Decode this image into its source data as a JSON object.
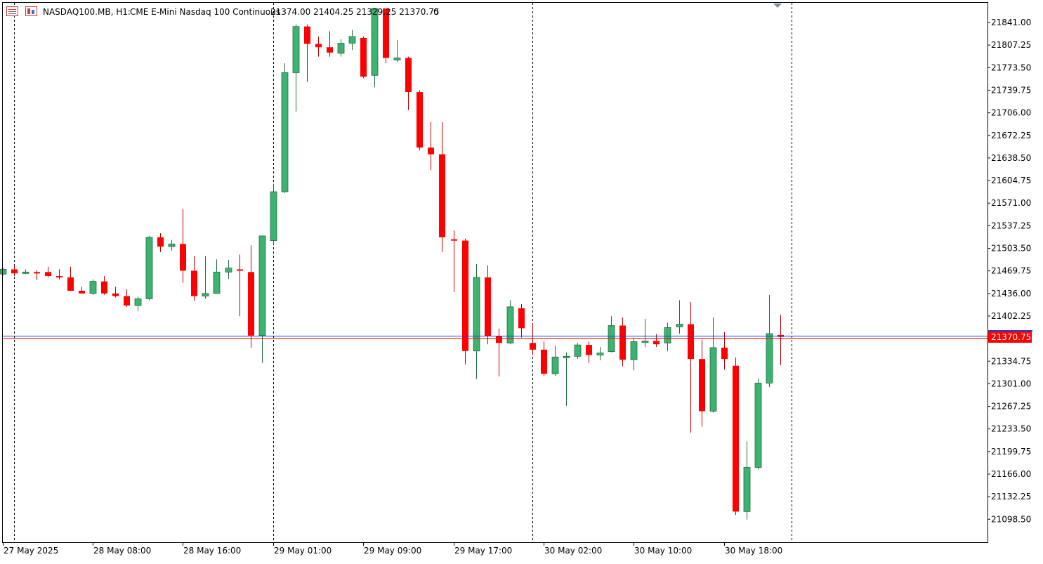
{
  "header": {
    "symbol": "NASDAQ100.MB, H1:",
    "description": "CME E-Mini Nasdaq 100 Continuous",
    "ohlc": "21374.00 21404.25 21329.25 21370.75",
    "volume": "0",
    "icons": [
      "chart-list-icon",
      "chart-window-icon"
    ]
  },
  "colors": {
    "bull": "#3CB371",
    "bear": "#FF0000",
    "bid_line": "#FF0000",
    "ask_line": "#1E3FCC",
    "price_label_bg": "#FF0000",
    "grid": "#000000",
    "background": "#FFFFFF"
  },
  "chart_data": {
    "type": "candlestick",
    "symbol": "NASDAQ100.MB",
    "timeframe": "H1",
    "current_price": "21370.75",
    "y_ticks": [
      "21841.00",
      "21807.25",
      "21773.50",
      "21739.75",
      "21706.00",
      "21672.25",
      "21638.50",
      "21604.75",
      "21571.00",
      "21537.25",
      "21503.50",
      "21469.75",
      "21436.00",
      "21402.25",
      "21370.75",
      "21334.75",
      "21301.00",
      "21267.25",
      "21233.50",
      "21199.75",
      "21166.00",
      "21132.25",
      "21098.50"
    ],
    "x_labels": [
      "27 May 2025",
      "28 May 08:00",
      "28 May 16:00",
      "29 May 01:00",
      "29 May 09:00",
      "29 May 17:00",
      "30 May 02:00",
      "30 May 10:00",
      "30 May 18:00"
    ],
    "x_label_bars": [
      0,
      8,
      16,
      24,
      32,
      40,
      48,
      56,
      64
    ],
    "day_separator_bars": [
      1,
      24,
      47,
      70
    ],
    "ylim": [
      21085,
      21860
    ],
    "candles": [
      [
        21465,
        21474,
        21463,
        21472
      ],
      [
        21472,
        21478,
        21462,
        21466
      ],
      [
        21467,
        21472,
        21465,
        21468
      ],
      [
        21468,
        21471,
        21456,
        21467
      ],
      [
        21468,
        21476,
        21460,
        21462
      ],
      [
        21462,
        21472,
        21457,
        21460
      ],
      [
        21460,
        21476,
        21440,
        21440
      ],
      [
        21440,
        21446,
        21436,
        21436
      ],
      [
        21436,
        21457,
        21434,
        21454
      ],
      [
        21454,
        21462,
        21434,
        21436
      ],
      [
        21436,
        21446,
        21430,
        21432
      ],
      [
        21432,
        21442,
        21416,
        21418
      ],
      [
        21418,
        21431,
        21410,
        21428
      ],
      [
        21428,
        21522,
        21426,
        21520
      ],
      [
        21520,
        21526,
        21498,
        21506
      ],
      [
        21506,
        21516,
        21500,
        21510
      ],
      [
        21510,
        21562,
        21452,
        21470
      ],
      [
        21470,
        21492,
        21425,
        21432
      ],
      [
        21432,
        21492,
        21428,
        21436
      ],
      [
        21436,
        21487,
        21436,
        21468
      ],
      [
        21468,
        21486,
        21458,
        21474
      ],
      [
        21472,
        21494,
        21402,
        21470
      ],
      [
        21468,
        21508,
        21355,
        21373
      ],
      [
        21373,
        21522,
        21332,
        21522
      ],
      [
        21515,
        21600,
        21508,
        21588
      ],
      [
        21588,
        21780,
        21586,
        21766
      ],
      [
        21766,
        21838,
        21708,
        21835
      ],
      [
        21835,
        21838,
        21752,
        21809
      ],
      [
        21809,
        21820,
        21790,
        21804
      ],
      [
        21804,
        21828,
        21790,
        21796
      ],
      [
        21795,
        21816,
        21790,
        21810
      ],
      [
        21810,
        21830,
        21800,
        21820
      ],
      [
        21818,
        21820,
        21758,
        21760
      ],
      [
        21762,
        21862,
        21744,
        21862
      ],
      [
        21862,
        21862,
        21780,
        21788
      ],
      [
        21785,
        21815,
        21782,
        21788
      ],
      [
        21788,
        21790,
        21710,
        21737
      ],
      [
        21737,
        21740,
        21650,
        21654
      ],
      [
        21654,
        21692,
        21620,
        21644
      ],
      [
        21644,
        21692,
        21498,
        21520
      ],
      [
        21517,
        21530,
        21438,
        21515
      ],
      [
        21515,
        21518,
        21330,
        21350
      ],
      [
        21350,
        21480,
        21308,
        21460
      ],
      [
        21460,
        21478,
        21360,
        21372
      ],
      [
        21372,
        21383,
        21312,
        21362
      ],
      [
        21362,
        21426,
        21360,
        21416
      ],
      [
        21414,
        21420,
        21370,
        21384
      ],
      [
        21362,
        21392,
        21344,
        21352
      ],
      [
        21352,
        21364,
        21313,
        21316
      ],
      [
        21316,
        21358,
        21313,
        21341
      ],
      [
        21341,
        21348,
        21268,
        21342
      ],
      [
        21342,
        21362,
        21338,
        21359
      ],
      [
        21359,
        21364,
        21332,
        21344
      ],
      [
        21344,
        21356,
        21336,
        21347
      ],
      [
        21349,
        21402,
        21348,
        21388
      ],
      [
        21388,
        21400,
        21327,
        21337
      ],
      [
        21337,
        21370,
        21321,
        21364
      ],
      [
        21363,
        21398,
        21356,
        21365
      ],
      [
        21365,
        21375,
        21356,
        21360
      ],
      [
        21362,
        21392,
        21350,
        21385
      ],
      [
        21386,
        21426,
        21376,
        21390
      ],
      [
        21390,
        21423,
        21228,
        21338
      ],
      [
        21338,
        21367,
        21237,
        21260
      ],
      [
        21260,
        21400,
        21258,
        21355
      ],
      [
        21355,
        21378,
        21322,
        21338
      ],
      [
        21328,
        21340,
        21105,
        21110
      ],
      [
        21110,
        21215,
        21098,
        21176
      ],
      [
        21176,
        21309,
        21173,
        21302
      ],
      [
        21302,
        21434,
        21296,
        21376
      ],
      [
        21374,
        21404,
        21329,
        21371
      ]
    ]
  }
}
